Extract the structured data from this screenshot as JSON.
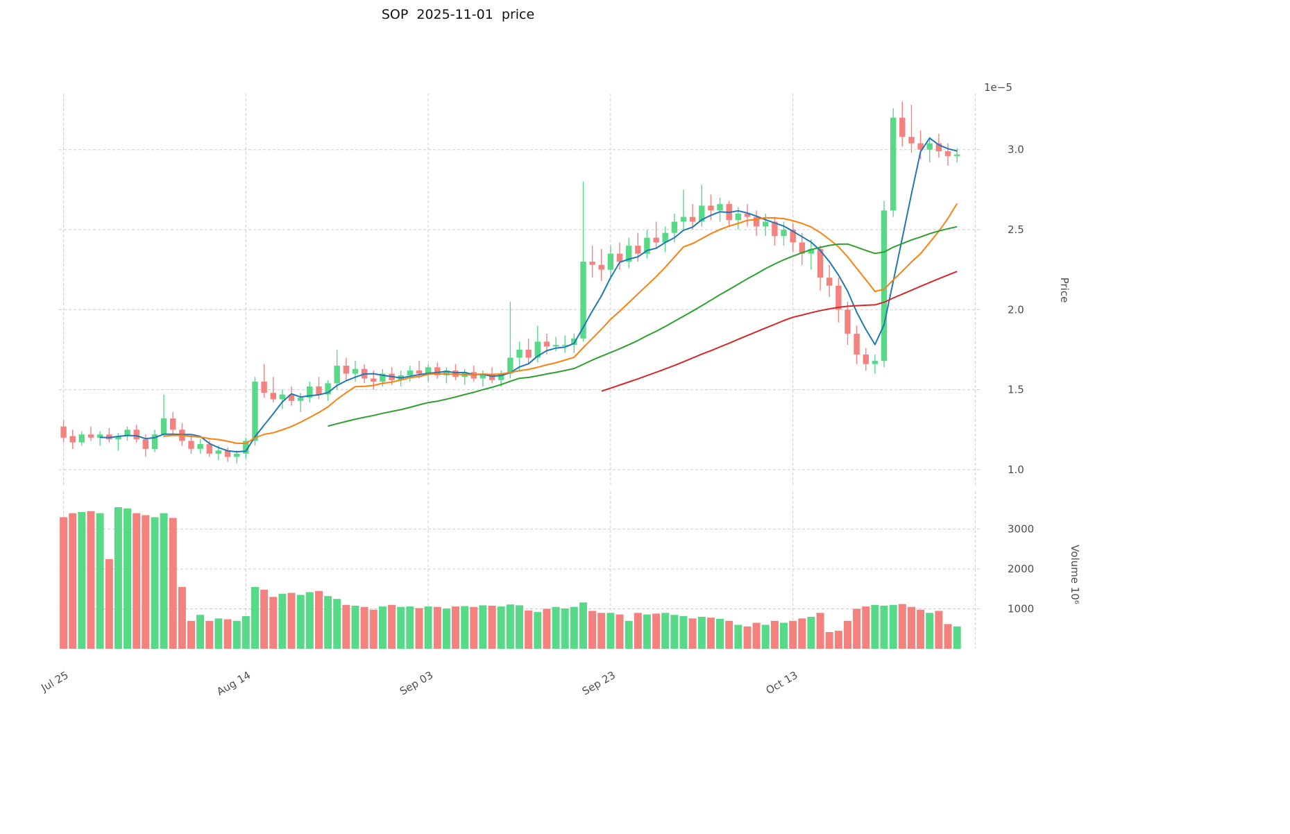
{
  "title": "SOP  2025-11-01  price",
  "chart_data": {
    "type": "candlestick",
    "title": "SOP  2025-11-01  price",
    "offset_label": "1e−5",
    "legend": [],
    "grid": "dashed",
    "price_axis": {
      "label": "Price",
      "ticks": [
        1.0,
        1.5,
        2.0,
        2.5,
        3.0
      ],
      "ylim": [
        0.9,
        3.35
      ],
      "scale": "1e-5"
    },
    "volume_axis": {
      "label": "Volume  10⁶",
      "ticks": [
        1000,
        2000,
        3000
      ],
      "ylim": [
        0,
        3950
      ],
      "scale": "1e6"
    },
    "x_ticks": [
      {
        "index": 0,
        "label": "Jul 25"
      },
      {
        "index": 20,
        "label": "Aug 14"
      },
      {
        "index": 40,
        "label": "Sep 03"
      },
      {
        "index": 60,
        "label": "Sep 23"
      },
      {
        "index": 80,
        "label": "Oct 13"
      },
      {
        "index": 100,
        "label": ""
      }
    ],
    "moving_averages": [
      {
        "name": "mav-short-line",
        "window": 5,
        "color": "#1f77b4"
      },
      {
        "name": "mav-medium-line",
        "window": 12,
        "color": "#ff7f0e"
      },
      {
        "name": "mav-long-line",
        "window": 30,
        "color": "#2ca02c"
      },
      {
        "name": "mav-longest-line",
        "window": 60,
        "color": "#d62728"
      }
    ],
    "colors": {
      "up": "#57d987",
      "down": "#f3827f",
      "grid": "#cccccc",
      "text": "#4d4d4d",
      "title": "#111111"
    },
    "ohlc": [
      [
        1.27,
        1.31,
        1.17,
        1.2
      ],
      [
        1.21,
        1.25,
        1.13,
        1.17
      ],
      [
        1.17,
        1.24,
        1.15,
        1.22
      ],
      [
        1.22,
        1.27,
        1.18,
        1.2
      ],
      [
        1.2,
        1.24,
        1.15,
        1.22
      ],
      [
        1.22,
        1.26,
        1.17,
        1.19
      ],
      [
        1.19,
        1.23,
        1.12,
        1.21
      ],
      [
        1.21,
        1.27,
        1.18,
        1.25
      ],
      [
        1.25,
        1.28,
        1.17,
        1.19
      ],
      [
        1.19,
        1.22,
        1.08,
        1.13
      ],
      [
        1.13,
        1.25,
        1.11,
        1.22
      ],
      [
        1.22,
        1.47,
        1.2,
        1.32
      ],
      [
        1.32,
        1.36,
        1.22,
        1.25
      ],
      [
        1.25,
        1.29,
        1.15,
        1.18
      ],
      [
        1.18,
        1.22,
        1.1,
        1.13
      ],
      [
        1.13,
        1.19,
        1.1,
        1.16
      ],
      [
        1.16,
        1.18,
        1.08,
        1.1
      ],
      [
        1.1,
        1.15,
        1.06,
        1.12
      ],
      [
        1.12,
        1.14,
        1.05,
        1.08
      ],
      [
        1.08,
        1.12,
        1.04,
        1.1
      ],
      [
        1.1,
        1.2,
        1.07,
        1.18
      ],
      [
        1.18,
        1.58,
        1.15,
        1.55
      ],
      [
        1.55,
        1.66,
        1.45,
        1.48
      ],
      [
        1.48,
        1.58,
        1.42,
        1.44
      ],
      [
        1.44,
        1.5,
        1.38,
        1.47
      ],
      [
        1.47,
        1.52,
        1.4,
        1.43
      ],
      [
        1.43,
        1.48,
        1.36,
        1.45
      ],
      [
        1.45,
        1.55,
        1.42,
        1.52
      ],
      [
        1.52,
        1.58,
        1.44,
        1.47
      ],
      [
        1.47,
        1.56,
        1.43,
        1.54
      ],
      [
        1.54,
        1.75,
        1.5,
        1.65
      ],
      [
        1.65,
        1.7,
        1.56,
        1.6
      ],
      [
        1.6,
        1.68,
        1.55,
        1.63
      ],
      [
        1.63,
        1.66,
        1.54,
        1.57
      ],
      [
        1.57,
        1.62,
        1.5,
        1.55
      ],
      [
        1.55,
        1.63,
        1.52,
        1.6
      ],
      [
        1.6,
        1.64,
        1.53,
        1.56
      ],
      [
        1.56,
        1.62,
        1.52,
        1.59
      ],
      [
        1.59,
        1.65,
        1.55,
        1.62
      ],
      [
        1.62,
        1.68,
        1.57,
        1.6
      ],
      [
        1.6,
        1.66,
        1.55,
        1.64
      ],
      [
        1.64,
        1.67,
        1.57,
        1.59
      ],
      [
        1.59,
        1.64,
        1.54,
        1.62
      ],
      [
        1.62,
        1.66,
        1.56,
        1.58
      ],
      [
        1.58,
        1.63,
        1.53,
        1.61
      ],
      [
        1.61,
        1.65,
        1.55,
        1.57
      ],
      [
        1.57,
        1.62,
        1.52,
        1.6
      ],
      [
        1.6,
        1.64,
        1.54,
        1.56
      ],
      [
        1.56,
        1.62,
        1.52,
        1.6
      ],
      [
        1.6,
        2.05,
        1.57,
        1.7
      ],
      [
        1.7,
        1.8,
        1.62,
        1.75
      ],
      [
        1.75,
        1.82,
        1.66,
        1.7
      ],
      [
        1.7,
        1.9,
        1.67,
        1.8
      ],
      [
        1.8,
        1.85,
        1.72,
        1.77
      ],
      [
        1.77,
        1.83,
        1.74,
        1.78
      ],
      [
        1.78,
        1.84,
        1.73,
        1.78
      ],
      [
        1.78,
        1.85,
        1.73,
        1.82
      ],
      [
        1.82,
        2.8,
        1.8,
        2.3
      ],
      [
        2.3,
        2.4,
        2.2,
        2.28
      ],
      [
        2.28,
        2.38,
        2.18,
        2.25
      ],
      [
        2.25,
        2.4,
        2.2,
        2.35
      ],
      [
        2.35,
        2.42,
        2.25,
        2.3
      ],
      [
        2.3,
        2.45,
        2.26,
        2.4
      ],
      [
        2.4,
        2.48,
        2.3,
        2.35
      ],
      [
        2.35,
        2.5,
        2.32,
        2.45
      ],
      [
        2.45,
        2.55,
        2.38,
        2.42
      ],
      [
        2.42,
        2.52,
        2.36,
        2.48
      ],
      [
        2.48,
        2.6,
        2.42,
        2.55
      ],
      [
        2.55,
        2.75,
        2.5,
        2.58
      ],
      [
        2.58,
        2.66,
        2.5,
        2.55
      ],
      [
        2.55,
        2.78,
        2.52,
        2.65
      ],
      [
        2.65,
        2.72,
        2.56,
        2.62
      ],
      [
        2.62,
        2.7,
        2.55,
        2.66
      ],
      [
        2.66,
        2.68,
        2.52,
        2.56
      ],
      [
        2.56,
        2.64,
        2.5,
        2.6
      ],
      [
        2.6,
        2.66,
        2.52,
        2.58
      ],
      [
        2.58,
        2.62,
        2.46,
        2.52
      ],
      [
        2.52,
        2.6,
        2.46,
        2.55
      ],
      [
        2.55,
        2.58,
        2.4,
        2.46
      ],
      [
        2.46,
        2.55,
        2.4,
        2.5
      ],
      [
        2.5,
        2.54,
        2.36,
        2.42
      ],
      [
        2.42,
        2.48,
        2.28,
        2.35
      ],
      [
        2.35,
        2.44,
        2.25,
        2.38
      ],
      [
        2.38,
        2.4,
        2.12,
        2.2
      ],
      [
        2.2,
        2.28,
        2.08,
        2.15
      ],
      [
        2.15,
        2.2,
        1.92,
        2.0
      ],
      [
        2.0,
        2.05,
        1.78,
        1.85
      ],
      [
        1.85,
        1.9,
        1.66,
        1.72
      ],
      [
        1.72,
        1.76,
        1.62,
        1.66
      ],
      [
        1.66,
        1.72,
        1.6,
        1.68
      ],
      [
        1.68,
        2.68,
        1.64,
        2.62
      ],
      [
        2.62,
        3.26,
        2.58,
        3.2
      ],
      [
        3.2,
        3.3,
        3.02,
        3.08
      ],
      [
        3.08,
        3.28,
        2.98,
        3.04
      ],
      [
        3.04,
        3.12,
        2.94,
        3.0
      ],
      [
        3.0,
        3.08,
        2.92,
        3.04
      ],
      [
        3.04,
        3.1,
        2.95,
        2.99
      ],
      [
        2.99,
        3.04,
        2.9,
        2.96
      ],
      [
        2.96,
        3.01,
        2.92,
        2.97
      ]
    ],
    "volume": [
      3300,
      3400,
      3430,
      3450,
      3400,
      2250,
      3550,
      3520,
      3400,
      3350,
      3300,
      3400,
      3280,
      1550,
      700,
      850,
      700,
      760,
      740,
      700,
      820,
      1550,
      1480,
      1300,
      1380,
      1400,
      1350,
      1420,
      1450,
      1320,
      1250,
      1100,
      1080,
      1050,
      980,
      1060,
      1100,
      1050,
      1060,
      1020,
      1060,
      1050,
      1010,
      1060,
      1070,
      1050,
      1090,
      1080,
      1060,
      1110,
      1090,
      960,
      920,
      1000,
      1050,
      1010,
      1050,
      1160,
      950,
      900,
      900,
      860,
      700,
      900,
      860,
      880,
      900,
      850,
      820,
      760,
      800,
      780,
      750,
      700,
      600,
      560,
      650,
      600,
      700,
      650,
      700,
      760,
      800,
      900,
      420,
      450,
      700,
      1000,
      1060,
      1100,
      1080,
      1100,
      1120,
      1050,
      980,
      900,
      950,
      620,
      560
    ]
  }
}
